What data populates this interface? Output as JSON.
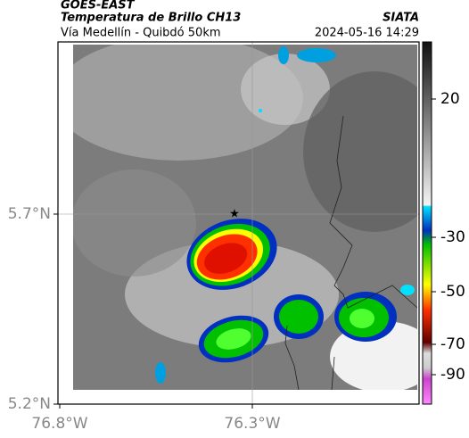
{
  "header": {
    "source": "GOES-EAST",
    "product": "Temperatura de Brillo CH13",
    "org": "SIATA",
    "route": "Vía Medellín - Quibdó 50km",
    "datetime": "2024-05-16 14:29"
  },
  "map": {
    "yticks": [
      "5.7°N",
      "5.2°N"
    ],
    "xticks": [
      "76.8°W",
      "76.3°W"
    ]
  },
  "colorbar": {
    "ticks": [
      20,
      -30,
      -50,
      -70,
      -90
    ]
  }
}
